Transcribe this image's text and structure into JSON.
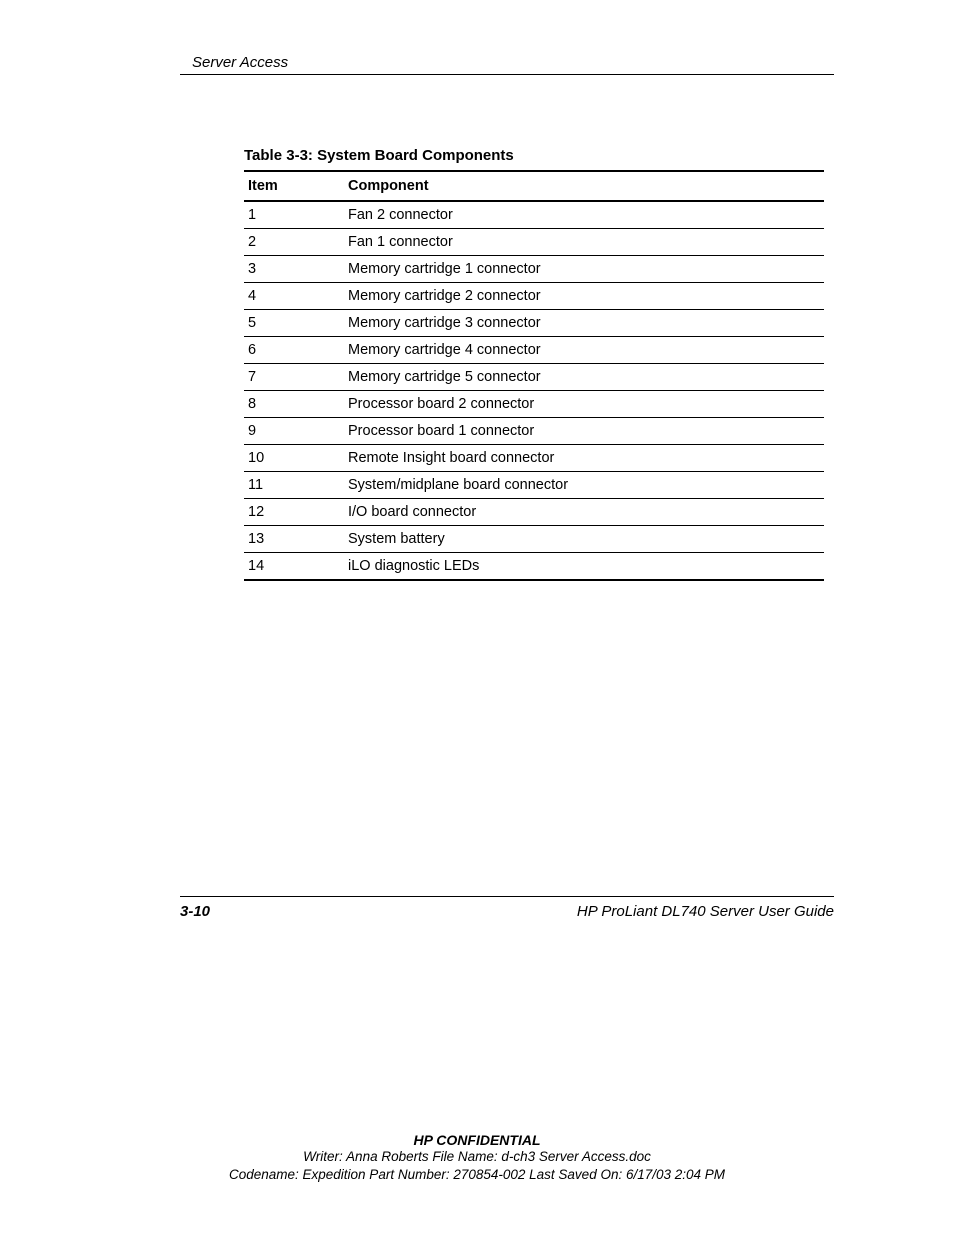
{
  "header": {
    "section": "Server Access"
  },
  "table": {
    "title": "Table 3-3:  System Board Components",
    "columns": [
      "Item",
      "Component"
    ],
    "rows": [
      [
        "1",
        "Fan 2 connector"
      ],
      [
        "2",
        "Fan 1 connector"
      ],
      [
        "3",
        "Memory cartridge 1 connector"
      ],
      [
        "4",
        "Memory cartridge 2 connector"
      ],
      [
        "5",
        "Memory cartridge 3 connector"
      ],
      [
        "6",
        "Memory cartridge 4 connector"
      ],
      [
        "7",
        "Memory cartridge 5 connector"
      ],
      [
        "8",
        "Processor board 2 connector"
      ],
      [
        "9",
        "Processor board 1 connector"
      ],
      [
        "10",
        "Remote Insight board connector"
      ],
      [
        "11",
        "System/midplane board connector"
      ],
      [
        "12",
        "I/O board connector"
      ],
      [
        "13",
        "System battery"
      ],
      [
        "14",
        "iLO diagnostic LEDs"
      ]
    ]
  },
  "footer": {
    "page_number": "3-10",
    "guide": "HP ProLiant DL740 Server User Guide"
  },
  "confidential": {
    "title": "HP CONFIDENTIAL",
    "line1": "Writer: Anna Roberts File Name: d-ch3 Server Access.doc",
    "line2": "Codename: Expedition Part Number: 270854-002 Last Saved On: 6/17/03 2:04 PM"
  }
}
